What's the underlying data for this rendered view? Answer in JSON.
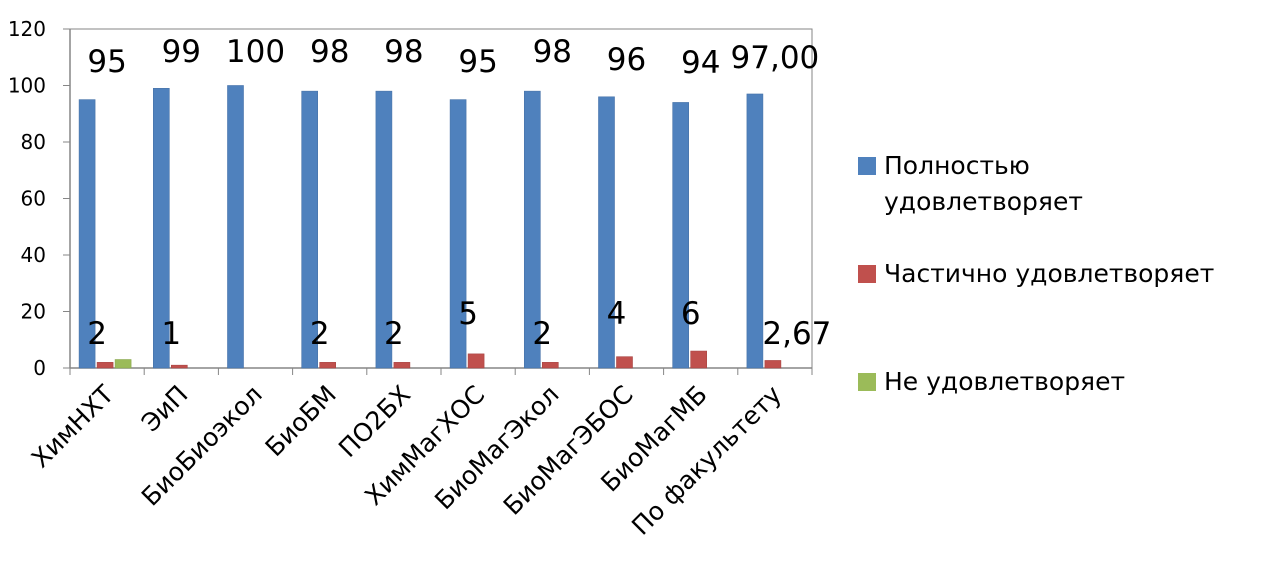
{
  "chart_data": {
    "type": "bar",
    "categories": [
      "ХимНХТ",
      "ЭиП",
      "БиоБиоэкол",
      "БиоБМ",
      "ПО2БХ",
      "ХимМагХОС",
      "БиоМагЭкол",
      "БиоМагЭБОС",
      "БиоМагМБ",
      "По факультету"
    ],
    "series": [
      {
        "name": "Полностью удовлетворяет",
        "color": "#4F81BD",
        "values": [
          95,
          99,
          100,
          98,
          98,
          95,
          98,
          96,
          94,
          97.0
        ],
        "labels": [
          "95",
          "99",
          "100",
          "98",
          "98",
          "95",
          "98",
          "96",
          "94",
          "97,00"
        ]
      },
      {
        "name": "Частично удовлетворяет",
        "color": "#C0504D",
        "values": [
          2,
          1,
          null,
          2,
          2,
          5,
          2,
          4,
          6,
          2.67
        ],
        "labels": [
          "2",
          "1",
          "",
          "2",
          "2",
          "5",
          "2",
          "4",
          "6",
          "2,67"
        ]
      },
      {
        "name": "Не удовлетворяет",
        "color": "#9BBB59",
        "values": [
          3,
          null,
          null,
          null,
          null,
          null,
          null,
          null,
          null,
          null
        ],
        "labels": [
          "",
          "",
          "",
          "",
          "",
          "",
          "",
          "",
          "",
          ""
        ]
      }
    ],
    "yticks": [
      "0",
      "20",
      "40",
      "60",
      "80",
      "100",
      "120"
    ],
    "ylim": [
      0,
      120
    ],
    "grid": false,
    "legend_position": "right"
  }
}
